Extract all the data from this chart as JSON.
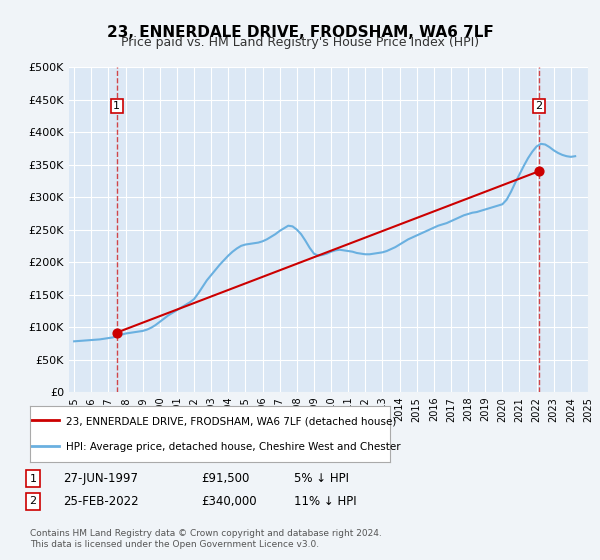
{
  "title": "23, ENNERDALE DRIVE, FRODSHAM, WA6 7LF",
  "subtitle": "Price paid vs. HM Land Registry's House Price Index (HPI)",
  "background_color": "#f0f4f8",
  "plot_bg_color": "#dce8f5",
  "legend_label_red": "23, ENNERDALE DRIVE, FRODSHAM, WA6 7LF (detached house)",
  "legend_label_blue": "HPI: Average price, detached house, Cheshire West and Chester",
  "footnote": "Contains HM Land Registry data © Crown copyright and database right 2024.\nThis data is licensed under the Open Government Licence v3.0.",
  "transaction1_label": "1",
  "transaction1_date": "27-JUN-1997",
  "transaction1_price": "£91,500",
  "transaction1_hpi": "5% ↓ HPI",
  "transaction1_year": 1997.49,
  "transaction1_value": 91500,
  "transaction2_label": "2",
  "transaction2_date": "25-FEB-2022",
  "transaction2_price": "£340,000",
  "transaction2_hpi": "11% ↓ HPI",
  "transaction2_year": 2022.15,
  "transaction2_value": 340000,
  "ylim": [
    0,
    500000
  ],
  "yticks": [
    0,
    50000,
    100000,
    150000,
    200000,
    250000,
    300000,
    350000,
    400000,
    450000,
    500000
  ],
  "ytick_labels": [
    "£0",
    "£50K",
    "£100K",
    "£150K",
    "£200K",
    "£250K",
    "£300K",
    "£350K",
    "£400K",
    "£450K",
    "£500K"
  ],
  "hpi_years": [
    1995.0,
    1995.25,
    1995.5,
    1995.75,
    1996.0,
    1996.25,
    1996.5,
    1996.75,
    1997.0,
    1997.25,
    1997.5,
    1997.75,
    1998.0,
    1998.25,
    1998.5,
    1998.75,
    1999.0,
    1999.25,
    1999.5,
    1999.75,
    2000.0,
    2000.25,
    2000.5,
    2000.75,
    2001.0,
    2001.25,
    2001.5,
    2001.75,
    2002.0,
    2002.25,
    2002.5,
    2002.75,
    2003.0,
    2003.25,
    2003.5,
    2003.75,
    2004.0,
    2004.25,
    2004.5,
    2004.75,
    2005.0,
    2005.25,
    2005.5,
    2005.75,
    2006.0,
    2006.25,
    2006.5,
    2006.75,
    2007.0,
    2007.25,
    2007.5,
    2007.75,
    2008.0,
    2008.25,
    2008.5,
    2008.75,
    2009.0,
    2009.25,
    2009.5,
    2009.75,
    2010.0,
    2010.25,
    2010.5,
    2010.75,
    2011.0,
    2011.25,
    2011.5,
    2011.75,
    2012.0,
    2012.25,
    2012.5,
    2012.75,
    2013.0,
    2013.25,
    2013.5,
    2013.75,
    2014.0,
    2014.25,
    2014.5,
    2014.75,
    2015.0,
    2015.25,
    2015.5,
    2015.75,
    2016.0,
    2016.25,
    2016.5,
    2016.75,
    2017.0,
    2017.25,
    2017.5,
    2017.75,
    2018.0,
    2018.25,
    2018.5,
    2018.75,
    2019.0,
    2019.25,
    2019.5,
    2019.75,
    2020.0,
    2020.25,
    2020.5,
    2020.75,
    2021.0,
    2021.25,
    2021.5,
    2021.75,
    2022.0,
    2022.25,
    2022.5,
    2022.75,
    2023.0,
    2023.25,
    2023.5,
    2023.75,
    2024.0,
    2024.25
  ],
  "hpi_values": [
    78000,
    78500,
    79000,
    79500,
    80000,
    80500,
    81000,
    82000,
    83000,
    84000,
    86000,
    88000,
    90000,
    91000,
    92000,
    93000,
    94000,
    96000,
    99000,
    103000,
    108000,
    113000,
    118000,
    122000,
    126000,
    130000,
    134000,
    138000,
    143000,
    152000,
    162000,
    172000,
    180000,
    188000,
    196000,
    203000,
    210000,
    216000,
    221000,
    225000,
    227000,
    228000,
    229000,
    230000,
    232000,
    235000,
    239000,
    243000,
    248000,
    252000,
    256000,
    255000,
    250000,
    243000,
    233000,
    222000,
    213000,
    210000,
    211000,
    213000,
    216000,
    218000,
    219000,
    218000,
    217000,
    216000,
    214000,
    213000,
    212000,
    212000,
    213000,
    214000,
    215000,
    217000,
    220000,
    223000,
    227000,
    231000,
    235000,
    238000,
    241000,
    244000,
    247000,
    250000,
    253000,
    256000,
    258000,
    260000,
    263000,
    266000,
    269000,
    272000,
    274000,
    276000,
    277000,
    279000,
    281000,
    283000,
    285000,
    287000,
    289000,
    296000,
    308000,
    322000,
    335000,
    348000,
    360000,
    370000,
    378000,
    382000,
    381000,
    377000,
    372000,
    368000,
    365000,
    363000,
    362000,
    363000
  ],
  "sold_years": [
    1997.49,
    2022.15
  ],
  "sold_values": [
    91500,
    340000
  ],
  "xmin": 1994.7,
  "xmax": 2025.0,
  "xticks": [
    1995,
    1996,
    1997,
    1998,
    1999,
    2000,
    2001,
    2002,
    2003,
    2004,
    2005,
    2006,
    2007,
    2008,
    2009,
    2010,
    2011,
    2012,
    2013,
    2014,
    2015,
    2016,
    2017,
    2018,
    2019,
    2020,
    2021,
    2022,
    2023,
    2024,
    2025
  ]
}
